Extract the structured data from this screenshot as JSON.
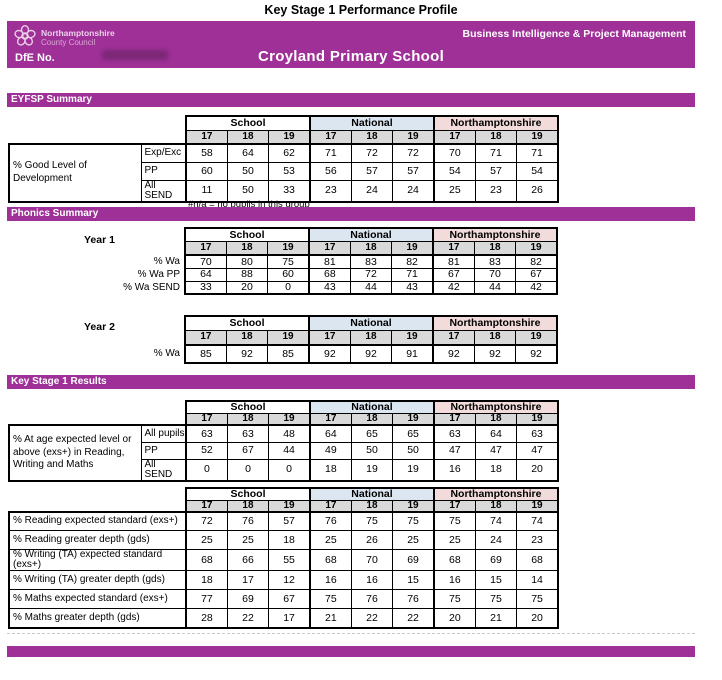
{
  "title": "Key Stage 1 Performance Profile",
  "banner": {
    "council_line1": "Northamptonshire",
    "council_line2": "County Council",
    "department": "Business Intelligence & Project Management",
    "dfe_label": "DfE No.",
    "school_name": "Croyland Primary School"
  },
  "colors": {
    "banner_purple": "#9E3097",
    "school_header_bg": "#FFFFFF",
    "national_header_bg": "#DCE6F1",
    "northamptonshire_header_bg": "#F2DCDB",
    "year_header_bg": "#D9D9D9"
  },
  "table_headers": {
    "groups": [
      "School",
      "National",
      "Northamptonshire"
    ],
    "years": [
      "17",
      "18",
      "19"
    ]
  },
  "eyfsp": {
    "section_title": "EYFSP Summary",
    "group_label": "% Good Level of Development",
    "rows": [
      {
        "label": "Exp/Exc",
        "values": [
          "58",
          "64",
          "62",
          "71",
          "72",
          "72",
          "70",
          "71",
          "71"
        ]
      },
      {
        "label": "PP",
        "values": [
          "60",
          "50",
          "53",
          "56",
          "57",
          "57",
          "54",
          "57",
          "54"
        ]
      },
      {
        "label": "All SEND",
        "values": [
          "11",
          "50",
          "33",
          "23",
          "24",
          "24",
          "25",
          "23",
          "26"
        ]
      }
    ],
    "footnote": "#n/a = no pupils in this group"
  },
  "phonics": {
    "section_title": "Phonics Summary",
    "year1_label": "Year 1",
    "year1_rows": [
      {
        "label": "% Wa",
        "values": [
          "70",
          "80",
          "75",
          "81",
          "83",
          "82",
          "81",
          "83",
          "82"
        ]
      },
      {
        "label": "% Wa PP",
        "values": [
          "64",
          "88",
          "60",
          "68",
          "72",
          "71",
          "67",
          "70",
          "67"
        ]
      },
      {
        "label": "% Wa SEND",
        "values": [
          "33",
          "20",
          "0",
          "43",
          "44",
          "43",
          "42",
          "44",
          "42"
        ]
      }
    ],
    "year2_label": "Year 2",
    "year2_rows": [
      {
        "label": "% Wa",
        "values": [
          "85",
          "92",
          "85",
          "92",
          "92",
          "91",
          "92",
          "92",
          "92"
        ]
      }
    ]
  },
  "ks1": {
    "section_title": "Key Stage 1 Results",
    "group_label": "% At age expected level or above (exs+) in Reading, Writing and Maths",
    "table1_rows": [
      {
        "label": "All pupils",
        "values": [
          "63",
          "63",
          "48",
          "64",
          "65",
          "65",
          "63",
          "64",
          "63"
        ]
      },
      {
        "label": "PP",
        "values": [
          "52",
          "67",
          "44",
          "49",
          "50",
          "50",
          "47",
          "47",
          "47"
        ]
      },
      {
        "label": "All SEND",
        "values": [
          "0",
          "0",
          "0",
          "18",
          "19",
          "19",
          "16",
          "18",
          "20"
        ]
      }
    ],
    "table2_rows": [
      {
        "label": "% Reading expected standard (exs+)",
        "values": [
          "72",
          "76",
          "57",
          "76",
          "75",
          "75",
          "75",
          "74",
          "74"
        ]
      },
      {
        "label": "% Reading greater depth (gds)",
        "values": [
          "25",
          "25",
          "18",
          "25",
          "26",
          "25",
          "25",
          "24",
          "23"
        ]
      },
      {
        "label": "% Writing (TA) expected standard (exs+)",
        "values": [
          "68",
          "66",
          "55",
          "68",
          "70",
          "69",
          "68",
          "69",
          "68"
        ]
      },
      {
        "label": "% Writing (TA) greater depth (gds)",
        "values": [
          "18",
          "17",
          "12",
          "16",
          "16",
          "15",
          "16",
          "15",
          "14"
        ]
      },
      {
        "label": "% Maths expected standard (exs+)",
        "values": [
          "77",
          "69",
          "67",
          "75",
          "76",
          "76",
          "75",
          "75",
          "75"
        ]
      },
      {
        "label": "% Maths greater depth (gds)",
        "values": [
          "28",
          "22",
          "17",
          "21",
          "22",
          "22",
          "20",
          "21",
          "20"
        ]
      }
    ]
  }
}
